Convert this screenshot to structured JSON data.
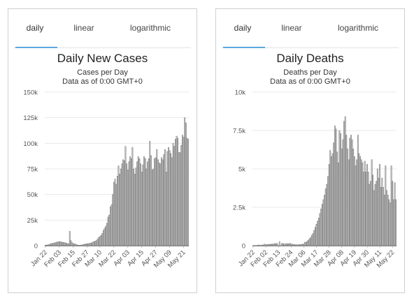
{
  "panels": [
    {
      "tabs": [
        {
          "label": "daily",
          "active": true
        },
        {
          "label": "linear",
          "active": false
        },
        {
          "label": "logarithmic",
          "active": false
        }
      ]
    },
    {
      "tabs": [
        {
          "label": "daily",
          "active": true
        },
        {
          "label": "linear",
          "active": false
        },
        {
          "label": "logarithmic",
          "active": false
        }
      ]
    }
  ],
  "colors": {
    "accent": "#5aa7dc",
    "bar_fill": "#d0d0d0",
    "bar_stroke": "#6b6b6b"
  },
  "chart_data": [
    {
      "type": "bar",
      "title": "Daily New Cases",
      "subtitle": "Cases per Day",
      "subtitle2": "Data as of 0:00 GMT+0",
      "ylim": [
        0,
        150000
      ],
      "grid": true,
      "yticks": [
        {
          "value": 0,
          "label": "0"
        },
        {
          "value": 25000,
          "label": "25k"
        },
        {
          "value": 50000,
          "label": "50k"
        },
        {
          "value": 75000,
          "label": "75k"
        },
        {
          "value": 100000,
          "label": "100k"
        },
        {
          "value": 125000,
          "label": "125k"
        },
        {
          "value": 150000,
          "label": "150k"
        }
      ],
      "xticks": [
        {
          "index": 0,
          "label": "Jan 22"
        },
        {
          "index": 12,
          "label": "Feb 03"
        },
        {
          "index": 24,
          "label": "Feb 15"
        },
        {
          "index": 36,
          "label": "Feb 27"
        },
        {
          "index": 47,
          "label": "Mar 10"
        },
        {
          "index": 59,
          "label": "Mar 22"
        },
        {
          "index": 71,
          "label": "Apr 03"
        },
        {
          "index": 83,
          "label": "Apr 15"
        },
        {
          "index": 95,
          "label": "Apr 27"
        },
        {
          "index": 107,
          "label": "May 09"
        },
        {
          "index": 119,
          "label": "May 21"
        }
      ],
      "values": [
        500,
        600,
        800,
        1000,
        1500,
        2000,
        2100,
        2500,
        2800,
        3000,
        3500,
        3700,
        3900,
        3800,
        3500,
        3300,
        3000,
        2800,
        2500,
        2000,
        1900,
        14000,
        5000,
        3000,
        2000,
        1800,
        1500,
        900,
        600,
        500,
        400,
        700,
        800,
        1200,
        1500,
        1800,
        1900,
        2000,
        2200,
        2500,
        2800,
        3500,
        4000,
        4500,
        5000,
        6500,
        8000,
        9000,
        10000,
        12000,
        15000,
        17000,
        19000,
        22000,
        28000,
        30000,
        38000,
        40000,
        50000,
        62000,
        65000,
        60000,
        68000,
        78000,
        70000,
        75000,
        80000,
        84000,
        83000,
        97000,
        80000,
        74000,
        82000,
        87000,
        85000,
        96000,
        75000,
        70000,
        76000,
        82000,
        87000,
        85000,
        80000,
        72000,
        79000,
        87000,
        85000,
        75000,
        82000,
        85000,
        102000,
        88000,
        74000,
        75000,
        85000,
        86000,
        94000,
        84000,
        81000,
        80000,
        86000,
        84000,
        89000,
        94000,
        72000,
        92000,
        96000,
        93000,
        90000,
        86000,
        100000,
        97000,
        104000,
        107000,
        105000,
        91000,
        91000,
        98000,
        108000,
        106000,
        125000,
        120000,
        105000,
        104000
      ]
    },
    {
      "type": "bar",
      "title": "Daily Deaths",
      "subtitle": "Deaths per Day",
      "subtitle2": "Data as of 0:00 GMT+0",
      "ylim": [
        0,
        10000
      ],
      "grid": true,
      "yticks": [
        {
          "value": 0,
          "label": "0"
        },
        {
          "value": 2500,
          "label": "2.5k"
        },
        {
          "value": 5000,
          "label": "5k"
        },
        {
          "value": 7500,
          "label": "7.5k"
        },
        {
          "value": 10000,
          "label": "10k"
        }
      ],
      "xticks": [
        {
          "index": 0,
          "label": "Jan 22"
        },
        {
          "index": 11,
          "label": "Feb 02"
        },
        {
          "index": 22,
          "label": "Feb 13"
        },
        {
          "index": 33,
          "label": "Feb 24"
        },
        {
          "index": 44,
          "label": "Mar 06"
        },
        {
          "index": 55,
          "label": "Mar 17"
        },
        {
          "index": 66,
          "label": "Mar 28"
        },
        {
          "index": 77,
          "label": "Apr 08"
        },
        {
          "index": 88,
          "label": "Apr 19"
        },
        {
          "index": 99,
          "label": "Apr 30"
        },
        {
          "index": 110,
          "label": "May 11"
        },
        {
          "index": 121,
          "label": "May 22"
        }
      ],
      "values": [
        17,
        8,
        16,
        14,
        26,
        49,
        2,
        38,
        42,
        46,
        103,
        64,
        66,
        73,
        86,
        89,
        97,
        108,
        97,
        146,
        121,
        143,
        5,
        254,
        13,
        143,
        142,
        106,
        98,
        139,
        115,
        125,
        150,
        105,
        95,
        80,
        70,
        60,
        55,
        55,
        65,
        70,
        85,
        105,
        95,
        230,
        210,
        300,
        360,
        450,
        540,
        680,
        800,
        1000,
        1200,
        1400,
        1600,
        1800,
        2100,
        2400,
        2700,
        3000,
        3300,
        3700,
        4000,
        4500,
        5300,
        6200,
        5800,
        6000,
        6700,
        7800,
        7600,
        6100,
        5400,
        7500,
        7300,
        6300,
        6900,
        8100,
        8400,
        7200,
        6300,
        5600,
        7000,
        7200,
        6900,
        6300,
        5800,
        5200,
        5600,
        7200,
        6000,
        5800,
        5600,
        5400,
        4800,
        5500,
        4800,
        5300,
        4800,
        4000,
        4200,
        5600,
        4600,
        3600,
        4000,
        4200,
        5000,
        4400,
        5300,
        3800,
        4400,
        3800,
        3300,
        5200,
        3600,
        3300,
        3000,
        2800,
        5200,
        4200,
        3000,
        4100,
        3000
      ]
    }
  ]
}
